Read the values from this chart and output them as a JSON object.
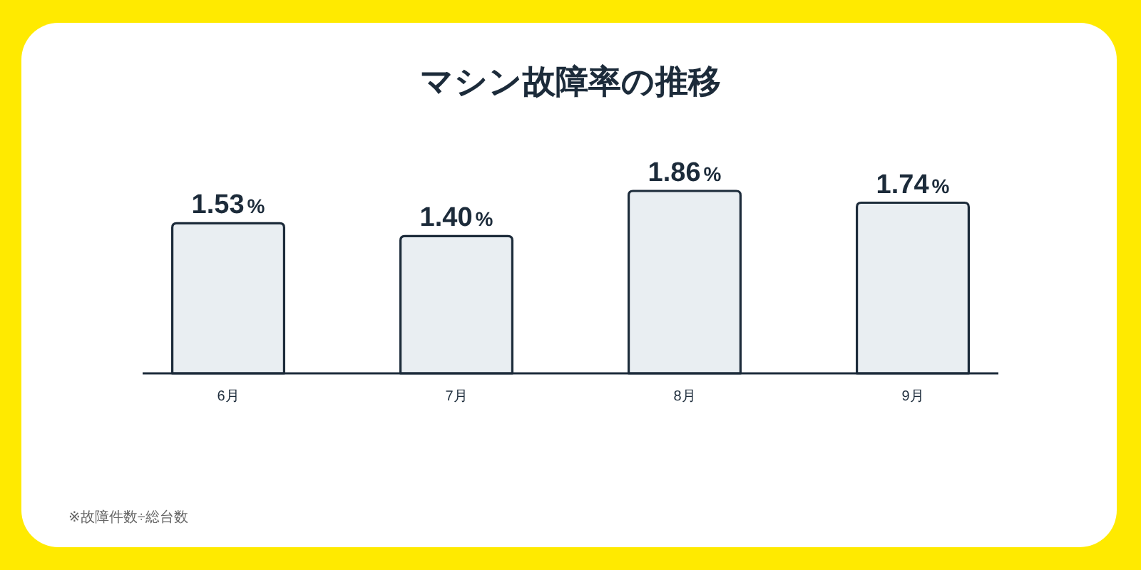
{
  "chart_data": {
    "type": "bar",
    "title": "マシン故障率の推移",
    "categories": [
      "6月",
      "7月",
      "8月",
      "9月"
    ],
    "values": [
      1.53,
      1.4,
      1.86,
      1.74
    ],
    "value_labels": [
      "1.53%",
      "1.40%",
      "1.86%",
      "1.74%"
    ],
    "color": "#e9eef2",
    "annotations": [
      "※故障件数÷総台数"
    ]
  }
}
